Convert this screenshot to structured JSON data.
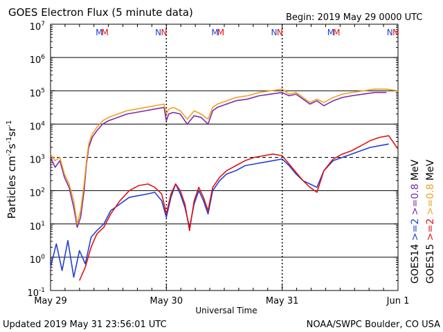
{
  "chart_data": {
    "type": "line",
    "title": "GOES Electron Flux (5 minute data)",
    "begin_label": "Begin: 2019 May 29 0000 UTC",
    "xlabel": "Universal Time",
    "ylabel_main": "Particles cm",
    "ylabel_sup1": "-2",
    "ylabel_mid1": "s",
    "ylabel_sup2": "-1",
    "ylabel_mid2": "sr",
    "ylabel_sup3": "-1",
    "x_unit": "days since 2019 May 29 0000 UTC",
    "xlim": [
      0,
      3.0
    ],
    "ylim_log10": [
      -1,
      7
    ],
    "y_scale": "log",
    "x_tick_labels": [
      {
        "x": 0,
        "label": "May 29"
      },
      {
        "x": 1,
        "label": "May 30"
      },
      {
        "x": 2,
        "label": "May 31"
      },
      {
        "x": 3,
        "label": "Jun 1"
      }
    ],
    "y_tick_labels": [
      {
        "exp": -1,
        "base": "10",
        "sup": "-1"
      },
      {
        "exp": 0,
        "base": "10",
        "sup": "0"
      },
      {
        "exp": 1,
        "base": "10",
        "sup": "1"
      },
      {
        "exp": 2,
        "base": "10",
        "sup": "2"
      },
      {
        "exp": 3,
        "base": "10",
        "sup": "3"
      },
      {
        "exp": 4,
        "base": "10",
        "sup": "4"
      },
      {
        "exp": 5,
        "base": "10",
        "sup": "5"
      },
      {
        "exp": 6,
        "base": "10",
        "sup": "6"
      },
      {
        "exp": 7,
        "base": "10",
        "sup": "7"
      }
    ],
    "threshold_exp": 3,
    "markers": [
      {
        "x": 0.42,
        "text": "M",
        "color": "#1f3fd8"
      },
      {
        "x": 0.47,
        "text": "M",
        "color": "#e01010"
      },
      {
        "x": 0.93,
        "text": "N",
        "color": "#1f3fd8"
      },
      {
        "x": 0.98,
        "text": "N",
        "color": "#e01010"
      },
      {
        "x": 1.42,
        "text": "M",
        "color": "#1f3fd8"
      },
      {
        "x": 1.47,
        "text": "M",
        "color": "#e01010"
      },
      {
        "x": 1.93,
        "text": "N",
        "color": "#1f3fd8"
      },
      {
        "x": 1.98,
        "text": "N",
        "color": "#e01010"
      },
      {
        "x": 2.42,
        "text": "M",
        "color": "#1f3fd8"
      },
      {
        "x": 2.47,
        "text": "M",
        "color": "#e01010"
      },
      {
        "x": 2.93,
        "text": "N",
        "color": "#1f3fd8"
      },
      {
        "x": 2.98,
        "text": "N",
        "color": "#e01010"
      }
    ],
    "legend_right": [
      {
        "text": "GOES14",
        "color": "#000000"
      },
      {
        "text": ">=2",
        "color": "#1f3fd8"
      },
      {
        "text": ">=0.8",
        "color": "#7b2aa8"
      },
      {
        "text": "MeV",
        "color": "#000000"
      }
    ],
    "legend_right2": [
      {
        "text": "GOES15",
        "color": "#000000"
      },
      {
        "text": ">=2",
        "color": "#e01010"
      },
      {
        "text": ">=0.8",
        "color": "#f0a020"
      },
      {
        "text": "MeV",
        "color": "#000000"
      }
    ],
    "series": [
      {
        "name": "GOES14 >=0.8 MeV",
        "color": "#7b2aa8",
        "x": [
          0.0,
          0.04,
          0.08,
          0.12,
          0.16,
          0.2,
          0.23,
          0.26,
          0.29,
          0.31,
          0.33,
          0.36,
          0.4,
          0.45,
          0.5,
          0.58,
          0.66,
          0.74,
          0.82,
          0.9,
          0.98,
          1.0,
          1.02,
          1.06,
          1.12,
          1.18,
          1.24,
          1.3,
          1.36,
          1.4,
          1.44,
          1.52,
          1.6,
          1.7,
          1.8,
          1.9,
          2.0,
          2.06,
          2.12,
          2.18,
          2.24,
          2.3,
          2.36,
          2.44,
          2.52,
          2.6,
          2.7,
          2.8,
          2.9
        ],
        "y_log10": [
          3.0,
          2.7,
          2.9,
          2.4,
          2.1,
          1.5,
          0.9,
          1.2,
          2.0,
          2.8,
          3.3,
          3.6,
          3.8,
          4.0,
          4.1,
          4.2,
          4.3,
          4.35,
          4.4,
          4.45,
          4.5,
          4.1,
          4.3,
          4.35,
          4.3,
          4.0,
          4.25,
          4.2,
          4.0,
          4.4,
          4.5,
          4.6,
          4.7,
          4.75,
          4.85,
          4.9,
          4.95,
          4.85,
          4.9,
          4.75,
          4.6,
          4.7,
          4.55,
          4.7,
          4.8,
          4.85,
          4.9,
          4.95,
          4.95
        ]
      },
      {
        "name": "GOES15 >=0.8 MeV",
        "color": "#f0a020",
        "x": [
          0.0,
          0.04,
          0.08,
          0.12,
          0.16,
          0.2,
          0.23,
          0.26,
          0.29,
          0.31,
          0.33,
          0.36,
          0.4,
          0.45,
          0.5,
          0.58,
          0.66,
          0.74,
          0.82,
          0.9,
          0.98,
          1.0,
          1.02,
          1.06,
          1.12,
          1.18,
          1.24,
          1.3,
          1.36,
          1.4,
          1.44,
          1.52,
          1.6,
          1.7,
          1.8,
          1.9,
          2.0,
          2.06,
          2.12,
          2.18,
          2.24,
          2.3,
          2.36,
          2.44,
          2.52,
          2.6,
          2.7,
          2.8,
          2.9,
          3.0
        ],
        "y_log10": [
          3.1,
          2.9,
          3.0,
          2.5,
          2.2,
          1.7,
          1.0,
          1.4,
          2.2,
          2.9,
          3.4,
          3.7,
          3.9,
          4.1,
          4.2,
          4.3,
          4.4,
          4.45,
          4.5,
          4.55,
          4.6,
          4.3,
          4.45,
          4.5,
          4.4,
          4.15,
          4.4,
          4.3,
          4.15,
          4.5,
          4.6,
          4.7,
          4.8,
          4.85,
          4.95,
          5.0,
          5.05,
          4.9,
          4.95,
          4.8,
          4.65,
          4.75,
          4.65,
          4.8,
          4.9,
          4.95,
          5.0,
          5.05,
          5.05,
          5.0
        ]
      },
      {
        "name": "GOES14 >=2 MeV",
        "color": "#1f3fd8",
        "x": [
          0.0,
          0.05,
          0.1,
          0.15,
          0.2,
          0.25,
          0.3,
          0.35,
          0.4,
          0.46,
          0.52,
          0.6,
          0.68,
          0.76,
          0.84,
          0.9,
          0.96,
          1.0,
          1.04,
          1.08,
          1.12,
          1.16,
          1.2,
          1.24,
          1.28,
          1.32,
          1.36,
          1.4,
          1.46,
          1.52,
          1.6,
          1.68,
          1.76,
          1.84,
          1.92,
          2.0,
          2.06,
          2.12,
          2.18,
          2.24,
          2.3,
          2.36,
          2.44,
          2.52,
          2.6,
          2.68,
          2.76,
          2.84,
          2.92
        ],
        "y_log10": [
          -0.3,
          0.4,
          -0.4,
          0.5,
          -0.6,
          0.2,
          -0.2,
          0.6,
          0.8,
          1.0,
          1.4,
          1.6,
          1.8,
          1.85,
          1.9,
          1.95,
          1.7,
          1.2,
          1.8,
          2.2,
          1.9,
          1.5,
          0.9,
          1.6,
          2.0,
          1.7,
          1.3,
          2.0,
          2.3,
          2.5,
          2.6,
          2.75,
          2.8,
          2.85,
          2.9,
          2.95,
          2.75,
          2.5,
          2.3,
          2.2,
          2.1,
          2.6,
          2.9,
          3.0,
          3.1,
          3.2,
          3.3,
          3.35,
          3.4
        ]
      },
      {
        "name": "GOES15 >=2 MeV",
        "color": "#e01010",
        "x": [
          0.25,
          0.3,
          0.35,
          0.4,
          0.46,
          0.52,
          0.6,
          0.68,
          0.76,
          0.84,
          0.9,
          0.96,
          1.0,
          1.04,
          1.08,
          1.12,
          1.16,
          1.2,
          1.24,
          1.28,
          1.32,
          1.36,
          1.4,
          1.46,
          1.52,
          1.6,
          1.68,
          1.76,
          1.84,
          1.92,
          2.0,
          2.06,
          2.12,
          2.18,
          2.24,
          2.3,
          2.36,
          2.44,
          2.52,
          2.6,
          2.68,
          2.76,
          2.84,
          2.92,
          3.0
        ],
        "y_log10": [
          -0.7,
          -0.3,
          0.3,
          0.7,
          0.9,
          1.3,
          1.7,
          2.0,
          2.15,
          2.2,
          2.1,
          1.9,
          1.3,
          1.9,
          2.2,
          2.0,
          1.6,
          0.8,
          1.7,
          2.1,
          1.8,
          1.4,
          2.1,
          2.4,
          2.6,
          2.75,
          2.9,
          3.0,
          3.05,
          3.1,
          3.05,
          2.8,
          2.55,
          2.3,
          2.1,
          1.95,
          2.6,
          2.95,
          3.1,
          3.2,
          3.35,
          3.5,
          3.6,
          3.65,
          3.25
        ]
      }
    ]
  },
  "footer": {
    "updated": "Updated 2019 May 31 23:56:01 UTC",
    "source": "NOAA/SWPC Boulder, CO USA"
  },
  "colors": {
    "goes14_2mev": "#1f3fd8",
    "goes15_2mev": "#e01010",
    "goes14_08mev": "#7b2aa8",
    "goes15_08mev": "#f0a020"
  }
}
